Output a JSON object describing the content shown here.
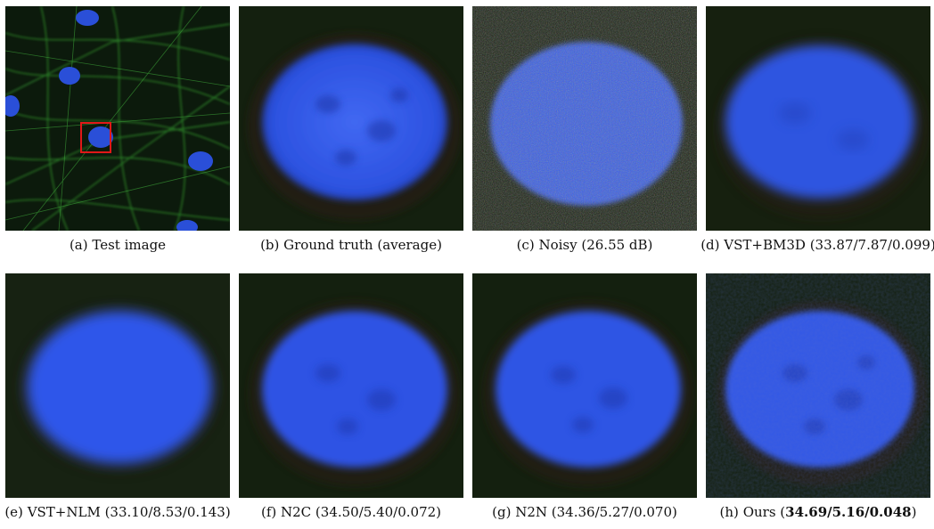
{
  "colors": {
    "nucleus": "#2f55e8",
    "nucleus_dark": "#1d3bb0",
    "background": "#0e1a0c",
    "cytoskeleton": "#2f8a2a",
    "highlight_box": "#e01818"
  },
  "panels": [
    {
      "id": "a",
      "prefix": "(a)",
      "text": "Test image",
      "bold": ""
    },
    {
      "id": "b",
      "prefix": "(b)",
      "text": "Ground truth (average)",
      "bold": ""
    },
    {
      "id": "c",
      "prefix": "(c)",
      "text": "Noisy (26.55 dB)",
      "bold": ""
    },
    {
      "id": "d",
      "prefix": "(d)",
      "text": "VST+BM3D (33.87/7.87/0.099)",
      "bold": ""
    },
    {
      "id": "e",
      "prefix": "(e)",
      "text": "VST+NLM (33.10/8.53/0.143)",
      "bold": ""
    },
    {
      "id": "f",
      "prefix": "(f)",
      "text": "N2C (34.50/5.40/0.072)",
      "bold": ""
    },
    {
      "id": "g",
      "prefix": "(g)",
      "text": "N2N (34.36/5.27/0.070)",
      "bold": ""
    },
    {
      "id": "h",
      "prefix": "(h)",
      "text": "Ours (",
      "bold": "34.69/5.16/0.048",
      "suffix": ")"
    }
  ]
}
